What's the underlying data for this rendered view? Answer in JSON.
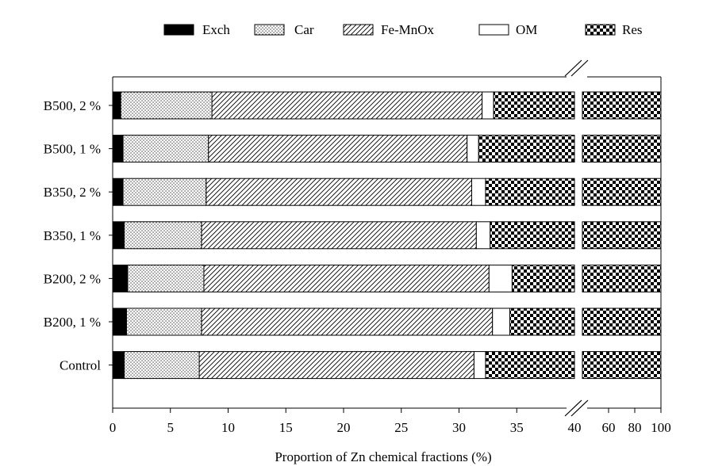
{
  "chart_data": {
    "type": "bar",
    "orientation": "horizontal",
    "stacked": true,
    "categories": [
      "B500, 2 %",
      "B500, 1 %",
      "B350, 2 %",
      "B350, 1 %",
      "B200, 2 %",
      "B200, 1 %",
      "Control"
    ],
    "series": [
      {
        "name": "Exch",
        "pattern": "solid-black",
        "values": [
          0.7,
          0.9,
          0.9,
          1.0,
          1.3,
          1.2,
          1.0
        ]
      },
      {
        "name": "Car",
        "pattern": "dots",
        "values": [
          7.9,
          7.4,
          7.2,
          6.7,
          6.6,
          6.5,
          6.5
        ]
      },
      {
        "name": "Fe-MnOx",
        "pattern": "diagonal-hatch",
        "values": [
          23.4,
          22.4,
          23.0,
          23.8,
          24.7,
          25.2,
          23.8
        ]
      },
      {
        "name": "OM",
        "pattern": "white",
        "values": [
          1.0,
          1.0,
          1.2,
          1.2,
          2.0,
          1.5,
          1.0
        ]
      },
      {
        "name": "Res",
        "pattern": "checkerboard",
        "values": [
          67.0,
          68.3,
          67.7,
          67.3,
          65.4,
          65.6,
          67.7
        ]
      }
    ],
    "xlabel": "Proportion of Zn chemical fractions (%)",
    "ylabel": "",
    "xlim": [
      0,
      100
    ],
    "axis_break": {
      "from": 40,
      "to": 40
    },
    "x_ticks_left_segment": [
      "0",
      "5",
      "10",
      "15",
      "20",
      "25",
      "30",
      "35"
    ],
    "x_ticks_right_segment": [
      "40",
      "60",
      "80",
      "100"
    ],
    "legend_placement": "top",
    "grid": false
  }
}
